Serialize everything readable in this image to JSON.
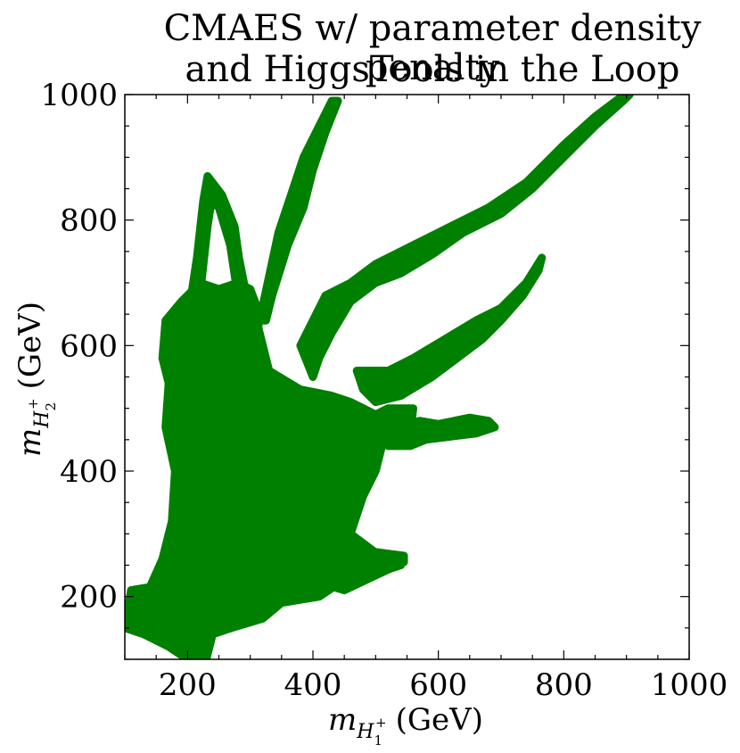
{
  "chart_data": {
    "type": "scatter",
    "title_line1": "CMAES w/ parameter density penalty",
    "title_line2": "and HiggsTools in the Loop",
    "xlabel_symbol": "m",
    "xlabel_sub": "H",
    "xlabel_subsub": "1",
    "xlabel_sup": "+",
    "xlabel_unit": "(GeV)",
    "ylabel_symbol": "m",
    "ylabel_sub": "H",
    "ylabel_subsub": "2",
    "ylabel_sup": "+",
    "ylabel_unit": "(GeV)",
    "xlim": [
      100,
      1000
    ],
    "ylim": [
      100,
      1000
    ],
    "xticks": [
      200,
      400,
      600,
      800,
      1000
    ],
    "yticks": [
      200,
      400,
      600,
      800,
      1000
    ],
    "color": "#008000",
    "grid": false,
    "regions": [
      {
        "name": "core",
        "points": [
          [
            100,
            150
          ],
          [
            110,
            210
          ],
          [
            140,
            215
          ],
          [
            160,
            260
          ],
          [
            175,
            320
          ],
          [
            180,
            400
          ],
          [
            165,
            470
          ],
          [
            170,
            540
          ],
          [
            160,
            580
          ],
          [
            165,
            640
          ],
          [
            190,
            670
          ],
          [
            220,
            700
          ],
          [
            250,
            690
          ],
          [
            280,
            700
          ],
          [
            300,
            680
          ],
          [
            330,
            560
          ],
          [
            380,
            530
          ],
          [
            430,
            520
          ],
          [
            460,
            510
          ],
          [
            480,
            500
          ],
          [
            500,
            490
          ],
          [
            520,
            500
          ],
          [
            560,
            500
          ],
          [
            555,
            460
          ],
          [
            520,
            460
          ],
          [
            510,
            440
          ],
          [
            500,
            400
          ],
          [
            480,
            360
          ],
          [
            470,
            330
          ],
          [
            460,
            300
          ],
          [
            500,
            270
          ],
          [
            545,
            265
          ],
          [
            540,
            250
          ],
          [
            480,
            230
          ],
          [
            440,
            220
          ],
          [
            410,
            200
          ],
          [
            350,
            190
          ],
          [
            320,
            165
          ],
          [
            270,
            150
          ],
          [
            240,
            140
          ],
          [
            230,
            100
          ],
          [
            200,
            100
          ],
          [
            170,
            120
          ],
          [
            130,
            140
          ]
        ]
      },
      {
        "name": "lower-extension",
        "points": [
          [
            300,
            250
          ],
          [
            400,
            225
          ],
          [
            450,
            210
          ],
          [
            545,
            255
          ],
          [
            545,
            265
          ],
          [
            470,
            275
          ],
          [
            420,
            285
          ],
          [
            380,
            295
          ]
        ]
      },
      {
        "name": "left-arm",
        "points": [
          [
            200,
            640
          ],
          [
            215,
            740
          ],
          [
            225,
            830
          ],
          [
            232,
            870
          ],
          [
            255,
            840
          ],
          [
            275,
            790
          ],
          [
            282,
            740
          ],
          [
            290,
            700
          ],
          [
            280,
            680
          ],
          [
            268,
            760
          ],
          [
            250,
            820
          ],
          [
            238,
            830
          ],
          [
            232,
            790
          ],
          [
            222,
            700
          ],
          [
            215,
            650
          ]
        ]
      },
      {
        "name": "loop-right",
        "points": [
          [
            290,
            560
          ],
          [
            310,
            600
          ],
          [
            315,
            650
          ],
          [
            300,
            690
          ],
          [
            280,
            700
          ],
          [
            275,
            660
          ],
          [
            290,
            630
          ],
          [
            295,
            590
          ]
        ]
      },
      {
        "name": "tall-branch",
        "points": [
          [
            315,
            640
          ],
          [
            345,
            780
          ],
          [
            365,
            840
          ],
          [
            385,
            900
          ],
          [
            410,
            950
          ],
          [
            430,
            990
          ],
          [
            440,
            990
          ],
          [
            420,
            940
          ],
          [
            400,
            880
          ],
          [
            385,
            820
          ],
          [
            360,
            760
          ],
          [
            335,
            680
          ],
          [
            325,
            640
          ]
        ]
      },
      {
        "name": "long-branch",
        "points": [
          [
            380,
            600
          ],
          [
            420,
            680
          ],
          [
            460,
            700
          ],
          [
            500,
            730
          ],
          [
            560,
            760
          ],
          [
            620,
            790
          ],
          [
            680,
            820
          ],
          [
            740,
            860
          ],
          [
            800,
            920
          ],
          [
            850,
            965
          ],
          [
            890,
            995
          ],
          [
            905,
            1000
          ],
          [
            895,
            990
          ],
          [
            850,
            950
          ],
          [
            800,
            900
          ],
          [
            750,
            850
          ],
          [
            700,
            810
          ],
          [
            640,
            780
          ],
          [
            590,
            745
          ],
          [
            540,
            715
          ],
          [
            500,
            700
          ],
          [
            460,
            670
          ],
          [
            430,
            620
          ],
          [
            410,
            580
          ],
          [
            400,
            550
          ]
        ]
      },
      {
        "name": "mid-branch",
        "points": [
          [
            470,
            560
          ],
          [
            520,
            560
          ],
          [
            560,
            580
          ],
          [
            610,
            610
          ],
          [
            660,
            640
          ],
          [
            700,
            660
          ],
          [
            740,
            700
          ],
          [
            765,
            740
          ],
          [
            760,
            720
          ],
          [
            735,
            680
          ],
          [
            700,
            640
          ],
          [
            670,
            610
          ],
          [
            630,
            580
          ],
          [
            590,
            550
          ],
          [
            540,
            520
          ],
          [
            500,
            510
          ],
          [
            480,
            530
          ]
        ]
      },
      {
        "name": "small-lobe",
        "points": [
          [
            505,
            455
          ],
          [
            540,
            470
          ],
          [
            570,
            480
          ],
          [
            600,
            475
          ],
          [
            650,
            485
          ],
          [
            680,
            480
          ],
          [
            690,
            470
          ],
          [
            660,
            460
          ],
          [
            620,
            455
          ],
          [
            580,
            450
          ],
          [
            555,
            440
          ],
          [
            520,
            440
          ]
        ]
      }
    ]
  }
}
